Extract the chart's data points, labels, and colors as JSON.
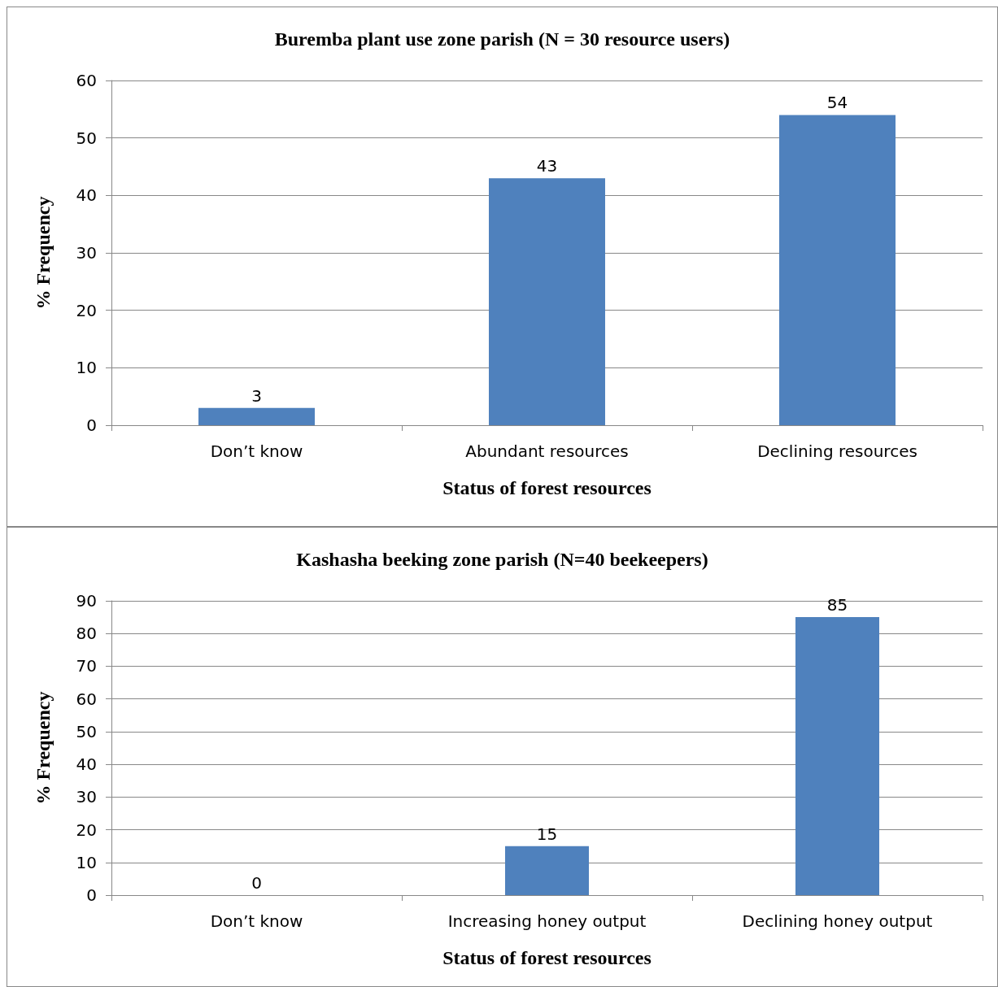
{
  "chart_data": [
    {
      "type": "bar",
      "title": "Buremba plant use zone parish (N = 30 resource users)",
      "xlabel": "Status of forest resources",
      "ylabel": "% Frequency",
      "categories": [
        "Don’t know",
        "Abundant resources",
        "Declining resources"
      ],
      "values": [
        3,
        43,
        54
      ],
      "color": "#4f81bd",
      "ylim": [
        0,
        60
      ],
      "yticks": [
        0,
        10,
        20,
        30,
        40,
        50,
        60
      ],
      "grid": "y",
      "data_labels": true
    },
    {
      "type": "bar",
      "title": "Kashasha beeking zone parish (N=40 beekeepers)",
      "xlabel": "Status of forest resources",
      "ylabel": "% Frequency",
      "categories": [
        "Don’t know",
        "Increasing honey output",
        "Declining honey output"
      ],
      "values": [
        0,
        15,
        85
      ],
      "color": "#4f81bd",
      "ylim": [
        0,
        90
      ],
      "yticks": [
        0,
        10,
        20,
        30,
        40,
        50,
        60,
        70,
        80,
        90
      ],
      "grid": "y",
      "data_labels": true
    }
  ]
}
